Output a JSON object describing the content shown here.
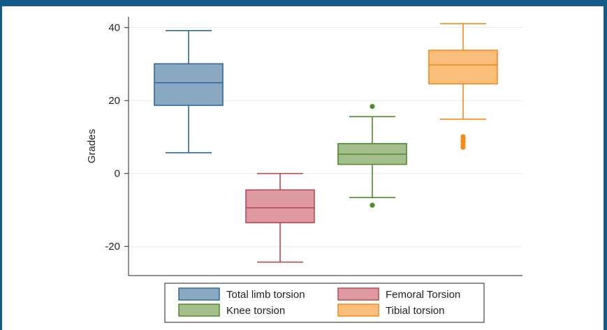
{
  "chart_data": {
    "type": "box",
    "ylabel": "Grades",
    "ylim": [
      -28,
      43
    ],
    "yticks": [
      -20,
      0,
      20,
      40
    ],
    "grid": true,
    "legend_position": "bottom",
    "series": [
      {
        "name": "Total limb torsion",
        "min": 5.7,
        "q1": 18.7,
        "median": 24.9,
        "q3": 30.1,
        "max": 39.2,
        "outliers": [],
        "fill": "#8aa8c1",
        "stroke": "#2c6a98"
      },
      {
        "name": "Femoral Torsion",
        "min": -24.3,
        "q1": -13.5,
        "median": -9.4,
        "q3": -4.5,
        "max": 0.0,
        "outliers": [],
        "fill": "#dd9aa1",
        "stroke": "#b84a56"
      },
      {
        "name": "Knee torsion",
        "min": -6.6,
        "q1": 2.5,
        "median": 5.3,
        "q3": 8.2,
        "max": 15.6,
        "outliers": [
          18.4,
          -8.7
        ],
        "fill": "#a4bf8c",
        "stroke": "#4e8a2e"
      },
      {
        "name": "Tibial torsion",
        "min": 14.9,
        "q1": 24.6,
        "median": 29.8,
        "q3": 33.8,
        "max": 41.1,
        "outliers": [
          10.1,
          9.5,
          8.8,
          8.0,
          7.2
        ],
        "fill": "#fbbf7b",
        "stroke": "#f28c1c"
      }
    ]
  }
}
